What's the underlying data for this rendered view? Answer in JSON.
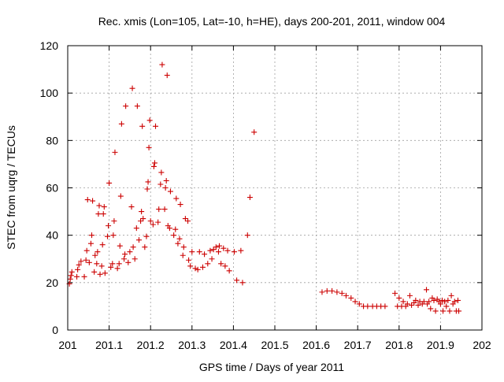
{
  "chart_data": {
    "type": "scatter",
    "title": "Rec. xmis (Lon=105, Lat=-10, h=HE), days 200-201, 2011, window 004",
    "xlabel": "GPS time / Days of year 2011",
    "ylabel": "STEC from uqrg / TECUs",
    "xlim": [
      201,
      202
    ],
    "ylim": [
      0,
      120
    ],
    "x_ticks": [
      201,
      201.1,
      201.2,
      201.3,
      201.4,
      201.5,
      201.6,
      201.7,
      201.8,
      201.9,
      202
    ],
    "x_tick_labels": [
      "201",
      "201.1",
      "201.2",
      "201.3",
      "201.4",
      "201.5",
      "201.6",
      "201.7",
      "201.8",
      "201.9",
      "202"
    ],
    "y_ticks": [
      0,
      20,
      40,
      60,
      80,
      100,
      120
    ],
    "y_tick_labels": [
      "0",
      "20",
      "40",
      "60",
      "80",
      "100",
      "120"
    ],
    "grid": true,
    "marker": "+",
    "color": "#cc0000",
    "points": [
      [
        201.004,
        19.5
      ],
      [
        201.006,
        21.5
      ],
      [
        201.008,
        23
      ],
      [
        201.01,
        24.5
      ],
      [
        201.022,
        22.5
      ],
      [
        201.024,
        25.5
      ],
      [
        201.027,
        27.5
      ],
      [
        201.032,
        29
      ],
      [
        201.04,
        22.5
      ],
      [
        201.044,
        29.5
      ],
      [
        201.046,
        33.5
      ],
      [
        201.048,
        55
      ],
      [
        201.052,
        28.5
      ],
      [
        201.056,
        36.5
      ],
      [
        201.058,
        40
      ],
      [
        201.06,
        54.5
      ],
      [
        201.064,
        24.5
      ],
      [
        201.066,
        31.5
      ],
      [
        201.07,
        28
      ],
      [
        201.072,
        33
      ],
      [
        201.074,
        49
      ],
      [
        201.076,
        52.5
      ],
      [
        201.078,
        23.5
      ],
      [
        201.082,
        27
      ],
      [
        201.084,
        36
      ],
      [
        201.086,
        49
      ],
      [
        201.088,
        52
      ],
      [
        201.09,
        24
      ],
      [
        201.096,
        39.5
      ],
      [
        201.098,
        44
      ],
      [
        201.1,
        62
      ],
      [
        201.104,
        26.5
      ],
      [
        201.108,
        28
      ],
      [
        201.11,
        40
      ],
      [
        201.112,
        46
      ],
      [
        201.114,
        75
      ],
      [
        201.12,
        26
      ],
      [
        201.124,
        28
      ],
      [
        201.126,
        35.5
      ],
      [
        201.128,
        56.5
      ],
      [
        201.13,
        87
      ],
      [
        201.136,
        30
      ],
      [
        201.138,
        32
      ],
      [
        201.14,
        94.5
      ],
      [
        201.146,
        28.5
      ],
      [
        201.15,
        33
      ],
      [
        201.154,
        52
      ],
      [
        201.156,
        102
      ],
      [
        201.158,
        35
      ],
      [
        201.162,
        30
      ],
      [
        201.166,
        43
      ],
      [
        201.168,
        94.5
      ],
      [
        201.172,
        38
      ],
      [
        201.176,
        46
      ],
      [
        201.178,
        50
      ],
      [
        201.18,
        86
      ],
      [
        201.182,
        47
      ],
      [
        201.186,
        35
      ],
      [
        201.19,
        39.5
      ],
      [
        201.192,
        59.5
      ],
      [
        201.194,
        62.5
      ],
      [
        201.196,
        77
      ],
      [
        201.198,
        88.5
      ],
      [
        201.2,
        46
      ],
      [
        201.206,
        44.5
      ],
      [
        201.208,
        69
      ],
      [
        201.21,
        70.5
      ],
      [
        201.212,
        86
      ],
      [
        201.218,
        45.5
      ],
      [
        201.22,
        51
      ],
      [
        201.224,
        61.5
      ],
      [
        201.226,
        66.5
      ],
      [
        201.228,
        112
      ],
      [
        201.234,
        51
      ],
      [
        201.236,
        60
      ],
      [
        201.238,
        63
      ],
      [
        201.24,
        107.5
      ],
      [
        201.242,
        44
      ],
      [
        201.246,
        43
      ],
      [
        201.248,
        58.5
      ],
      [
        201.256,
        40
      ],
      [
        201.26,
        42.5
      ],
      [
        201.262,
        55.5
      ],
      [
        201.266,
        36.5
      ],
      [
        201.27,
        38.5
      ],
      [
        201.272,
        53
      ],
      [
        201.278,
        31.5
      ],
      [
        201.28,
        35
      ],
      [
        201.284,
        47
      ],
      [
        201.29,
        46
      ],
      [
        201.292,
        29.5
      ],
      [
        201.296,
        27
      ],
      [
        201.3,
        33
      ],
      [
        201.308,
        26
      ],
      [
        201.314,
        25.5
      ],
      [
        201.318,
        33
      ],
      [
        201.326,
        26.5
      ],
      [
        201.33,
        32
      ],
      [
        201.338,
        28
      ],
      [
        201.344,
        33.5
      ],
      [
        201.348,
        30
      ],
      [
        201.352,
        34
      ],
      [
        201.358,
        35
      ],
      [
        201.364,
        33
      ],
      [
        201.366,
        35.5
      ],
      [
        201.37,
        28
      ],
      [
        201.376,
        34.5
      ],
      [
        201.38,
        27
      ],
      [
        201.386,
        33.5
      ],
      [
        201.39,
        25
      ],
      [
        201.402,
        33
      ],
      [
        201.408,
        21
      ],
      [
        201.418,
        33.5
      ],
      [
        201.422,
        20
      ],
      [
        201.434,
        40
      ],
      [
        201.44,
        56
      ],
      [
        201.45,
        83.5
      ],
      [
        201.614,
        16
      ],
      [
        201.626,
        16.5
      ],
      [
        201.638,
        16.5
      ],
      [
        201.65,
        16
      ],
      [
        201.662,
        15.5
      ],
      [
        201.672,
        14.5
      ],
      [
        201.684,
        13.5
      ],
      [
        201.694,
        12
      ],
      [
        201.704,
        11
      ],
      [
        201.714,
        10
      ],
      [
        201.724,
        10
      ],
      [
        201.736,
        10
      ],
      [
        201.746,
        10
      ],
      [
        201.756,
        10
      ],
      [
        201.766,
        10
      ],
      [
        201.79,
        15.5
      ],
      [
        201.796,
        10
      ],
      [
        201.8,
        13.5
      ],
      [
        201.806,
        10
      ],
      [
        201.81,
        12
      ],
      [
        201.816,
        10
      ],
      [
        201.82,
        11
      ],
      [
        201.826,
        14.5
      ],
      [
        201.83,
        10.5
      ],
      [
        201.836,
        11.5
      ],
      [
        201.84,
        12.5
      ],
      [
        201.846,
        10.5
      ],
      [
        201.85,
        12
      ],
      [
        201.856,
        11
      ],
      [
        201.86,
        12
      ],
      [
        201.866,
        17
      ],
      [
        201.868,
        11
      ],
      [
        201.872,
        12
      ],
      [
        201.876,
        9
      ],
      [
        201.88,
        13.5
      ],
      [
        201.884,
        12.5
      ],
      [
        201.888,
        8
      ],
      [
        201.892,
        13
      ],
      [
        201.896,
        12
      ],
      [
        201.9,
        11
      ],
      [
        201.904,
        12.5
      ],
      [
        201.906,
        8
      ],
      [
        201.91,
        12
      ],
      [
        201.914,
        10
      ],
      [
        201.918,
        12.5
      ],
      [
        201.922,
        8
      ],
      [
        201.926,
        14.5
      ],
      [
        201.93,
        11
      ],
      [
        201.934,
        12
      ],
      [
        201.938,
        8
      ],
      [
        201.942,
        12.5
      ],
      [
        201.944,
        8
      ]
    ]
  }
}
